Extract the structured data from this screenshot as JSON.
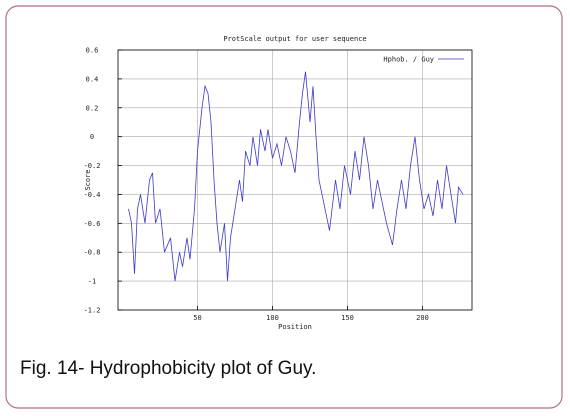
{
  "chart_data": {
    "type": "line",
    "title": "ProtScale output for user sequence",
    "xlabel": "Position",
    "ylabel": "Score",
    "x": [
      4,
      6,
      8,
      10,
      12,
      15,
      18,
      20,
      22,
      25,
      28,
      32,
      35,
      38,
      40,
      43,
      45,
      48,
      50,
      53,
      55,
      57,
      59,
      61,
      63,
      65,
      68,
      70,
      72,
      75,
      78,
      80,
      82,
      85,
      87,
      90,
      92,
      95,
      97,
      100,
      103,
      106,
      109,
      112,
      115,
      118,
      120,
      122,
      125,
      127,
      129,
      131,
      135,
      138,
      142,
      145,
      148,
      152,
      155,
      158,
      161,
      164,
      167,
      170,
      173,
      176,
      180,
      183,
      186,
      189,
      192,
      195,
      198,
      201,
      204,
      207,
      210,
      213,
      216,
      219,
      222,
      224,
      227
    ],
    "series": [
      {
        "name": "Hphob. / Guy",
        "color": "#3a3acc",
        "values": [
          -0.5,
          -0.6,
          -0.95,
          -0.5,
          -0.4,
          -0.6,
          -0.3,
          -0.25,
          -0.6,
          -0.5,
          -0.8,
          -0.7,
          -1.0,
          -0.8,
          -0.9,
          -0.7,
          -0.85,
          -0.5,
          -0.1,
          0.2,
          0.35,
          0.3,
          0.1,
          -0.3,
          -0.6,
          -0.8,
          -0.6,
          -1.0,
          -0.7,
          -0.5,
          -0.3,
          -0.45,
          -0.1,
          -0.2,
          0.0,
          -0.2,
          0.05,
          -0.1,
          0.05,
          -0.15,
          -0.05,
          -0.2,
          0.0,
          -0.1,
          -0.25,
          0.1,
          0.3,
          0.45,
          0.1,
          0.35,
          0.0,
          -0.3,
          -0.5,
          -0.65,
          -0.3,
          -0.5,
          -0.2,
          -0.4,
          -0.1,
          -0.3,
          0.0,
          -0.2,
          -0.5,
          -0.3,
          -0.45,
          -0.6,
          -0.75,
          -0.5,
          -0.3,
          -0.5,
          -0.2,
          0.0,
          -0.3,
          -0.5,
          -0.4,
          -0.55,
          -0.3,
          -0.5,
          -0.2,
          -0.4,
          -0.6,
          -0.35,
          -0.4
        ]
      }
    ],
    "xlim": [
      -3,
      233
    ],
    "xticks": [
      50,
      100,
      150,
      200
    ],
    "ylim": [
      -1.2,
      0.6
    ],
    "yticks": [
      0.6,
      0.4,
      0.2,
      0,
      -0.2,
      -0.4,
      -0.6,
      -0.8,
      -1,
      -1.2
    ],
    "grid": true,
    "legend": "upper right"
  },
  "caption": "Fig. 14- Hydrophobicity plot of Guy."
}
